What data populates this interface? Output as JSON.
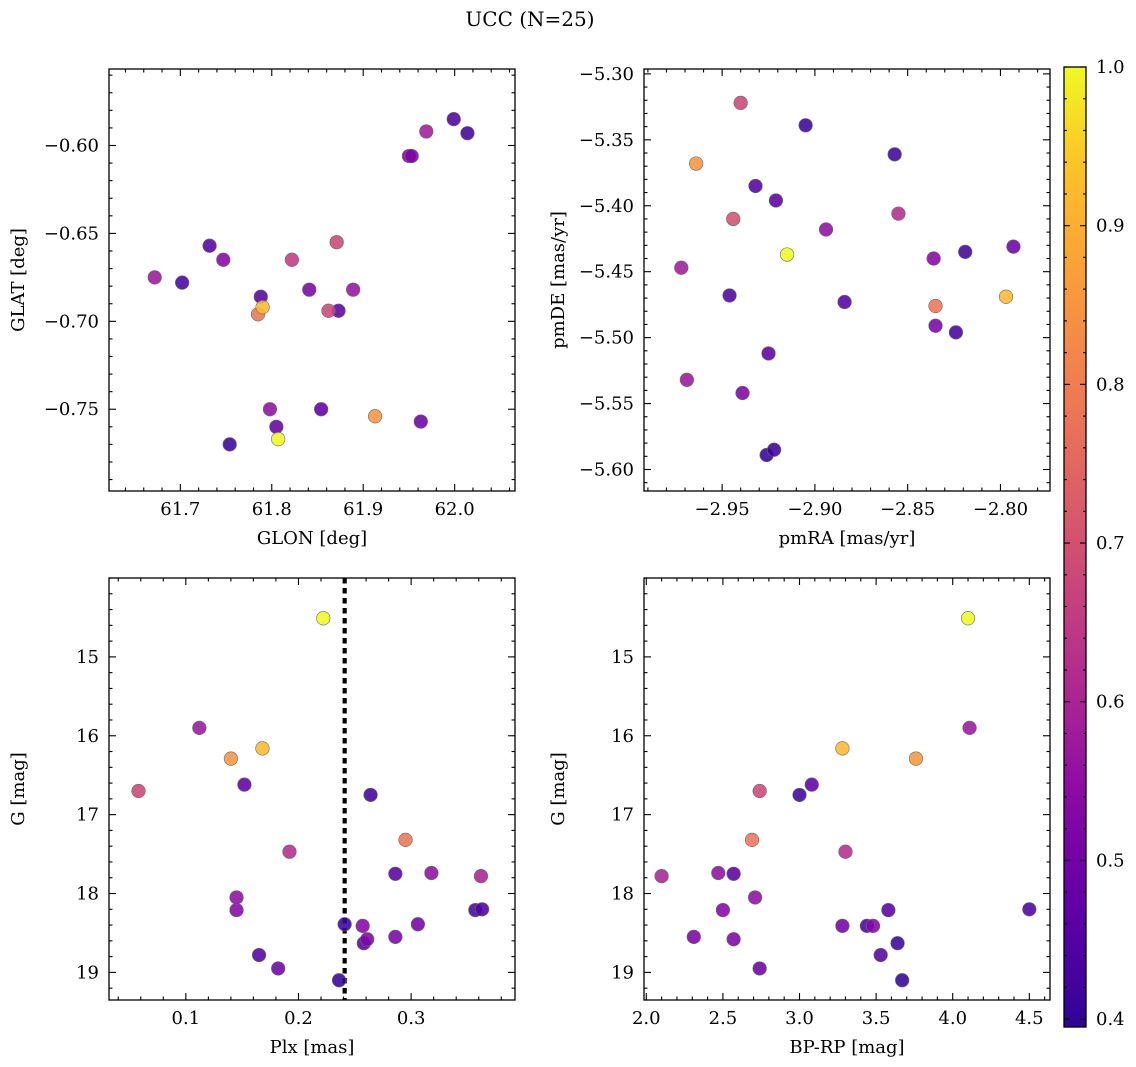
{
  "figure": {
    "title": "UCC (N=25)"
  },
  "colorbar": {
    "range": [
      0.395,
      1.0
    ],
    "ticks": [
      0.4,
      0.5,
      0.6,
      0.7,
      0.8,
      0.9,
      1.0
    ],
    "tick_labels": [
      "0.4",
      "0.5",
      "0.6",
      "0.7",
      "0.8",
      "0.9",
      "1.0"
    ],
    "colormap": "plasma"
  },
  "chart_data": [
    {
      "type": "scatter",
      "panel": "top-left",
      "xlabel": "GLON [deg]",
      "ylabel": "GLAT [deg]",
      "xlim": [
        61.622,
        62.066
      ],
      "ylim": [
        -0.7965,
        -0.5565
      ],
      "xticks": [
        61.7,
        61.8,
        61.9,
        62.0
      ],
      "xtick_labels": [
        "61.7",
        "61.8",
        "61.9",
        "62.0"
      ],
      "yticks": [
        -0.6,
        -0.65,
        -0.7,
        -0.75
      ],
      "ytick_labels": [
        "−0.60",
        "−0.65",
        "−0.70",
        "−0.75"
      ],
      "points": [
        {
          "x": 61.79,
          "y": -0.692,
          "c": 0.92
        },
        {
          "x": 61.807,
          "y": -0.767,
          "c": 1.0
        },
        {
          "x": 61.913,
          "y": -0.754,
          "c": 0.85
        },
        {
          "x": 61.785,
          "y": -0.696,
          "c": 0.78
        },
        {
          "x": 61.871,
          "y": -0.655,
          "c": 0.68
        },
        {
          "x": 61.862,
          "y": -0.694,
          "c": 0.68
        },
        {
          "x": 61.822,
          "y": -0.665,
          "c": 0.65
        },
        {
          "x": 61.969,
          "y": -0.592,
          "c": 0.58
        },
        {
          "x": 61.672,
          "y": -0.675,
          "c": 0.57
        },
        {
          "x": 61.889,
          "y": -0.682,
          "c": 0.56
        },
        {
          "x": 61.798,
          "y": -0.75,
          "c": 0.55
        },
        {
          "x": 61.747,
          "y": -0.665,
          "c": 0.53
        },
        {
          "x": 61.95,
          "y": -0.606,
          "c": 0.52
        },
        {
          "x": 61.953,
          "y": -0.606,
          "c": 0.52
        },
        {
          "x": 61.841,
          "y": -0.682,
          "c": 0.51
        },
        {
          "x": 61.963,
          "y": -0.757,
          "c": 0.49
        },
        {
          "x": 61.805,
          "y": -0.76,
          "c": 0.48
        },
        {
          "x": 61.854,
          "y": -0.75,
          "c": 0.47
        },
        {
          "x": 61.873,
          "y": -0.694,
          "c": 0.46
        },
        {
          "x": 61.732,
          "y": -0.657,
          "c": 0.45
        },
        {
          "x": 61.788,
          "y": -0.686,
          "c": 0.45
        },
        {
          "x": 61.999,
          "y": -0.585,
          "c": 0.44
        },
        {
          "x": 61.702,
          "y": -0.678,
          "c": 0.43
        },
        {
          "x": 62.014,
          "y": -0.593,
          "c": 0.42
        },
        {
          "x": 61.754,
          "y": -0.77,
          "c": 0.41
        }
      ]
    },
    {
      "type": "scatter",
      "panel": "top-right",
      "xlabel": "pmRA [mas/yr]",
      "ylabel": "pmDE [mas/yr]",
      "xlim": [
        -2.9921,
        -2.7733
      ],
      "ylim": [
        -5.6163,
        -5.2963
      ],
      "xticks": [
        -2.95,
        -2.9,
        -2.85,
        -2.8
      ],
      "xtick_labels": [
        "−2.95",
        "−2.90",
        "−2.85",
        "−2.80"
      ],
      "yticks": [
        -5.3,
        -5.35,
        -5.4,
        -5.45,
        -5.5,
        -5.55,
        -5.6
      ],
      "ytick_labels": [
        "−5.30",
        "−5.35",
        "−5.40",
        "−5.45",
        "−5.50",
        "−5.55",
        "−5.60"
      ],
      "points": [
        {
          "x": -2.915,
          "y": -5.437,
          "c": 1.0
        },
        {
          "x": -2.797,
          "y": -5.469,
          "c": 0.92
        },
        {
          "x": -2.964,
          "y": -5.368,
          "c": 0.85
        },
        {
          "x": -2.835,
          "y": -5.476,
          "c": 0.78
        },
        {
          "x": -2.944,
          "y": -5.41,
          "c": 0.7
        },
        {
          "x": -2.94,
          "y": -5.322,
          "c": 0.68
        },
        {
          "x": -2.855,
          "y": -5.406,
          "c": 0.62
        },
        {
          "x": -2.972,
          "y": -5.447,
          "c": 0.58
        },
        {
          "x": -2.969,
          "y": -5.532,
          "c": 0.57
        },
        {
          "x": -2.894,
          "y": -5.418,
          "c": 0.55
        },
        {
          "x": -2.836,
          "y": -5.44,
          "c": 0.53
        },
        {
          "x": -2.939,
          "y": -5.542,
          "c": 0.52
        },
        {
          "x": -2.835,
          "y": -5.491,
          "c": 0.51
        },
        {
          "x": -2.793,
          "y": -5.431,
          "c": 0.49
        },
        {
          "x": -2.925,
          "y": -5.512,
          "c": 0.47
        },
        {
          "x": -2.921,
          "y": -5.396,
          "c": 0.46
        },
        {
          "x": -2.884,
          "y": -5.473,
          "c": 0.45
        },
        {
          "x": -2.932,
          "y": -5.385,
          "c": 0.45
        },
        {
          "x": -2.946,
          "y": -5.468,
          "c": 0.44
        },
        {
          "x": -2.824,
          "y": -5.496,
          "c": 0.43
        },
        {
          "x": -2.819,
          "y": -5.435,
          "c": 0.42
        },
        {
          "x": -2.857,
          "y": -5.361,
          "c": 0.42
        },
        {
          "x": -2.905,
          "y": -5.339,
          "c": 0.41
        },
        {
          "x": -2.922,
          "y": -5.585,
          "c": 0.41
        },
        {
          "x": -2.926,
          "y": -5.589,
          "c": 0.4
        }
      ]
    },
    {
      "type": "scatter",
      "panel": "bottom-left",
      "xlabel": "Plx [mas]",
      "ylabel": "G [mag]",
      "xlim": [
        0.0318,
        0.3922
      ],
      "ylim": [
        19.35,
        14.0
      ],
      "y_inverted": true,
      "xticks": [
        0.1,
        0.2,
        0.3
      ],
      "xtick_labels": [
        "0.1",
        "0.2",
        "0.3"
      ],
      "yticks": [
        15,
        16,
        17,
        18,
        19
      ],
      "ytick_labels": [
        "15",
        "16",
        "17",
        "18",
        "19"
      ],
      "vline": {
        "x": 0.241,
        "style": "dotted"
      },
      "points": [
        {
          "x": 0.222,
          "y": 14.51,
          "c": 1.0
        },
        {
          "x": 0.168,
          "y": 16.16,
          "c": 0.92
        },
        {
          "x": 0.14,
          "y": 16.29,
          "c": 0.85
        },
        {
          "x": 0.295,
          "y": 17.32,
          "c": 0.78
        },
        {
          "x": 0.058,
          "y": 16.7,
          "c": 0.68
        },
        {
          "x": 0.192,
          "y": 17.47,
          "c": 0.62
        },
        {
          "x": 0.362,
          "y": 17.78,
          "c": 0.6
        },
        {
          "x": 0.112,
          "y": 15.9,
          "c": 0.57
        },
        {
          "x": 0.318,
          "y": 17.74,
          "c": 0.55
        },
        {
          "x": 0.145,
          "y": 18.05,
          "c": 0.55
        },
        {
          "x": 0.145,
          "y": 18.21,
          "c": 0.53
        },
        {
          "x": 0.257,
          "y": 18.41,
          "c": 0.53
        },
        {
          "x": 0.261,
          "y": 18.58,
          "c": 0.52
        },
        {
          "x": 0.286,
          "y": 18.55,
          "c": 0.51
        },
        {
          "x": 0.306,
          "y": 18.39,
          "c": 0.5
        },
        {
          "x": 0.182,
          "y": 18.95,
          "c": 0.49
        },
        {
          "x": 0.152,
          "y": 16.62,
          "c": 0.47
        },
        {
          "x": 0.286,
          "y": 17.75,
          "c": 0.46
        },
        {
          "x": 0.258,
          "y": 18.63,
          "c": 0.46
        },
        {
          "x": 0.165,
          "y": 18.78,
          "c": 0.45
        },
        {
          "x": 0.363,
          "y": 18.2,
          "c": 0.44
        },
        {
          "x": 0.357,
          "y": 18.21,
          "c": 0.43
        },
        {
          "x": 0.264,
          "y": 16.75,
          "c": 0.42
        },
        {
          "x": 0.241,
          "y": 18.39,
          "c": 0.41
        },
        {
          "x": 0.236,
          "y": 19.1,
          "c": 0.4
        }
      ]
    },
    {
      "type": "scatter",
      "panel": "bottom-right",
      "xlabel": "BP-RP [mag]",
      "ylabel": "G [mag]",
      "xlim": [
        1.985,
        4.635
      ],
      "ylim": [
        19.35,
        14.0
      ],
      "y_inverted": true,
      "xticks": [
        2.0,
        2.5,
        3.0,
        3.5,
        4.0,
        4.5
      ],
      "xtick_labels": [
        "2.0",
        "2.5",
        "3.0",
        "3.5",
        "4.0",
        "4.5"
      ],
      "yticks": [
        15,
        16,
        17,
        18,
        19
      ],
      "ytick_labels": [
        "15",
        "16",
        "17",
        "18",
        "19"
      ],
      "points": [
        {
          "x": 4.1,
          "y": 14.51,
          "c": 1.0
        },
        {
          "x": 3.28,
          "y": 16.16,
          "c": 0.92
        },
        {
          "x": 3.76,
          "y": 16.29,
          "c": 0.85
        },
        {
          "x": 2.69,
          "y": 17.32,
          "c": 0.78
        },
        {
          "x": 2.74,
          "y": 16.7,
          "c": 0.68
        },
        {
          "x": 3.3,
          "y": 17.47,
          "c": 0.62
        },
        {
          "x": 2.1,
          "y": 17.78,
          "c": 0.6
        },
        {
          "x": 4.11,
          "y": 15.9,
          "c": 0.57
        },
        {
          "x": 2.47,
          "y": 17.74,
          "c": 0.55
        },
        {
          "x": 2.71,
          "y": 18.05,
          "c": 0.55
        },
        {
          "x": 2.5,
          "y": 18.21,
          "c": 0.53
        },
        {
          "x": 3.48,
          "y": 18.41,
          "c": 0.53
        },
        {
          "x": 2.57,
          "y": 18.58,
          "c": 0.52
        },
        {
          "x": 2.31,
          "y": 18.55,
          "c": 0.51
        },
        {
          "x": 3.28,
          "y": 18.41,
          "c": 0.5
        },
        {
          "x": 2.74,
          "y": 18.95,
          "c": 0.49
        },
        {
          "x": 3.08,
          "y": 16.62,
          "c": 0.47
        },
        {
          "x": 2.57,
          "y": 17.75,
          "c": 0.46
        },
        {
          "x": 3.58,
          "y": 18.21,
          "c": 0.46
        },
        {
          "x": 3.53,
          "y": 18.78,
          "c": 0.45
        },
        {
          "x": 4.5,
          "y": 18.2,
          "c": 0.44
        },
        {
          "x": 3.44,
          "y": 18.41,
          "c": 0.43
        },
        {
          "x": 3.0,
          "y": 16.75,
          "c": 0.42
        },
        {
          "x": 3.64,
          "y": 18.63,
          "c": 0.41
        },
        {
          "x": 3.67,
          "y": 19.1,
          "c": 0.4
        }
      ]
    }
  ]
}
